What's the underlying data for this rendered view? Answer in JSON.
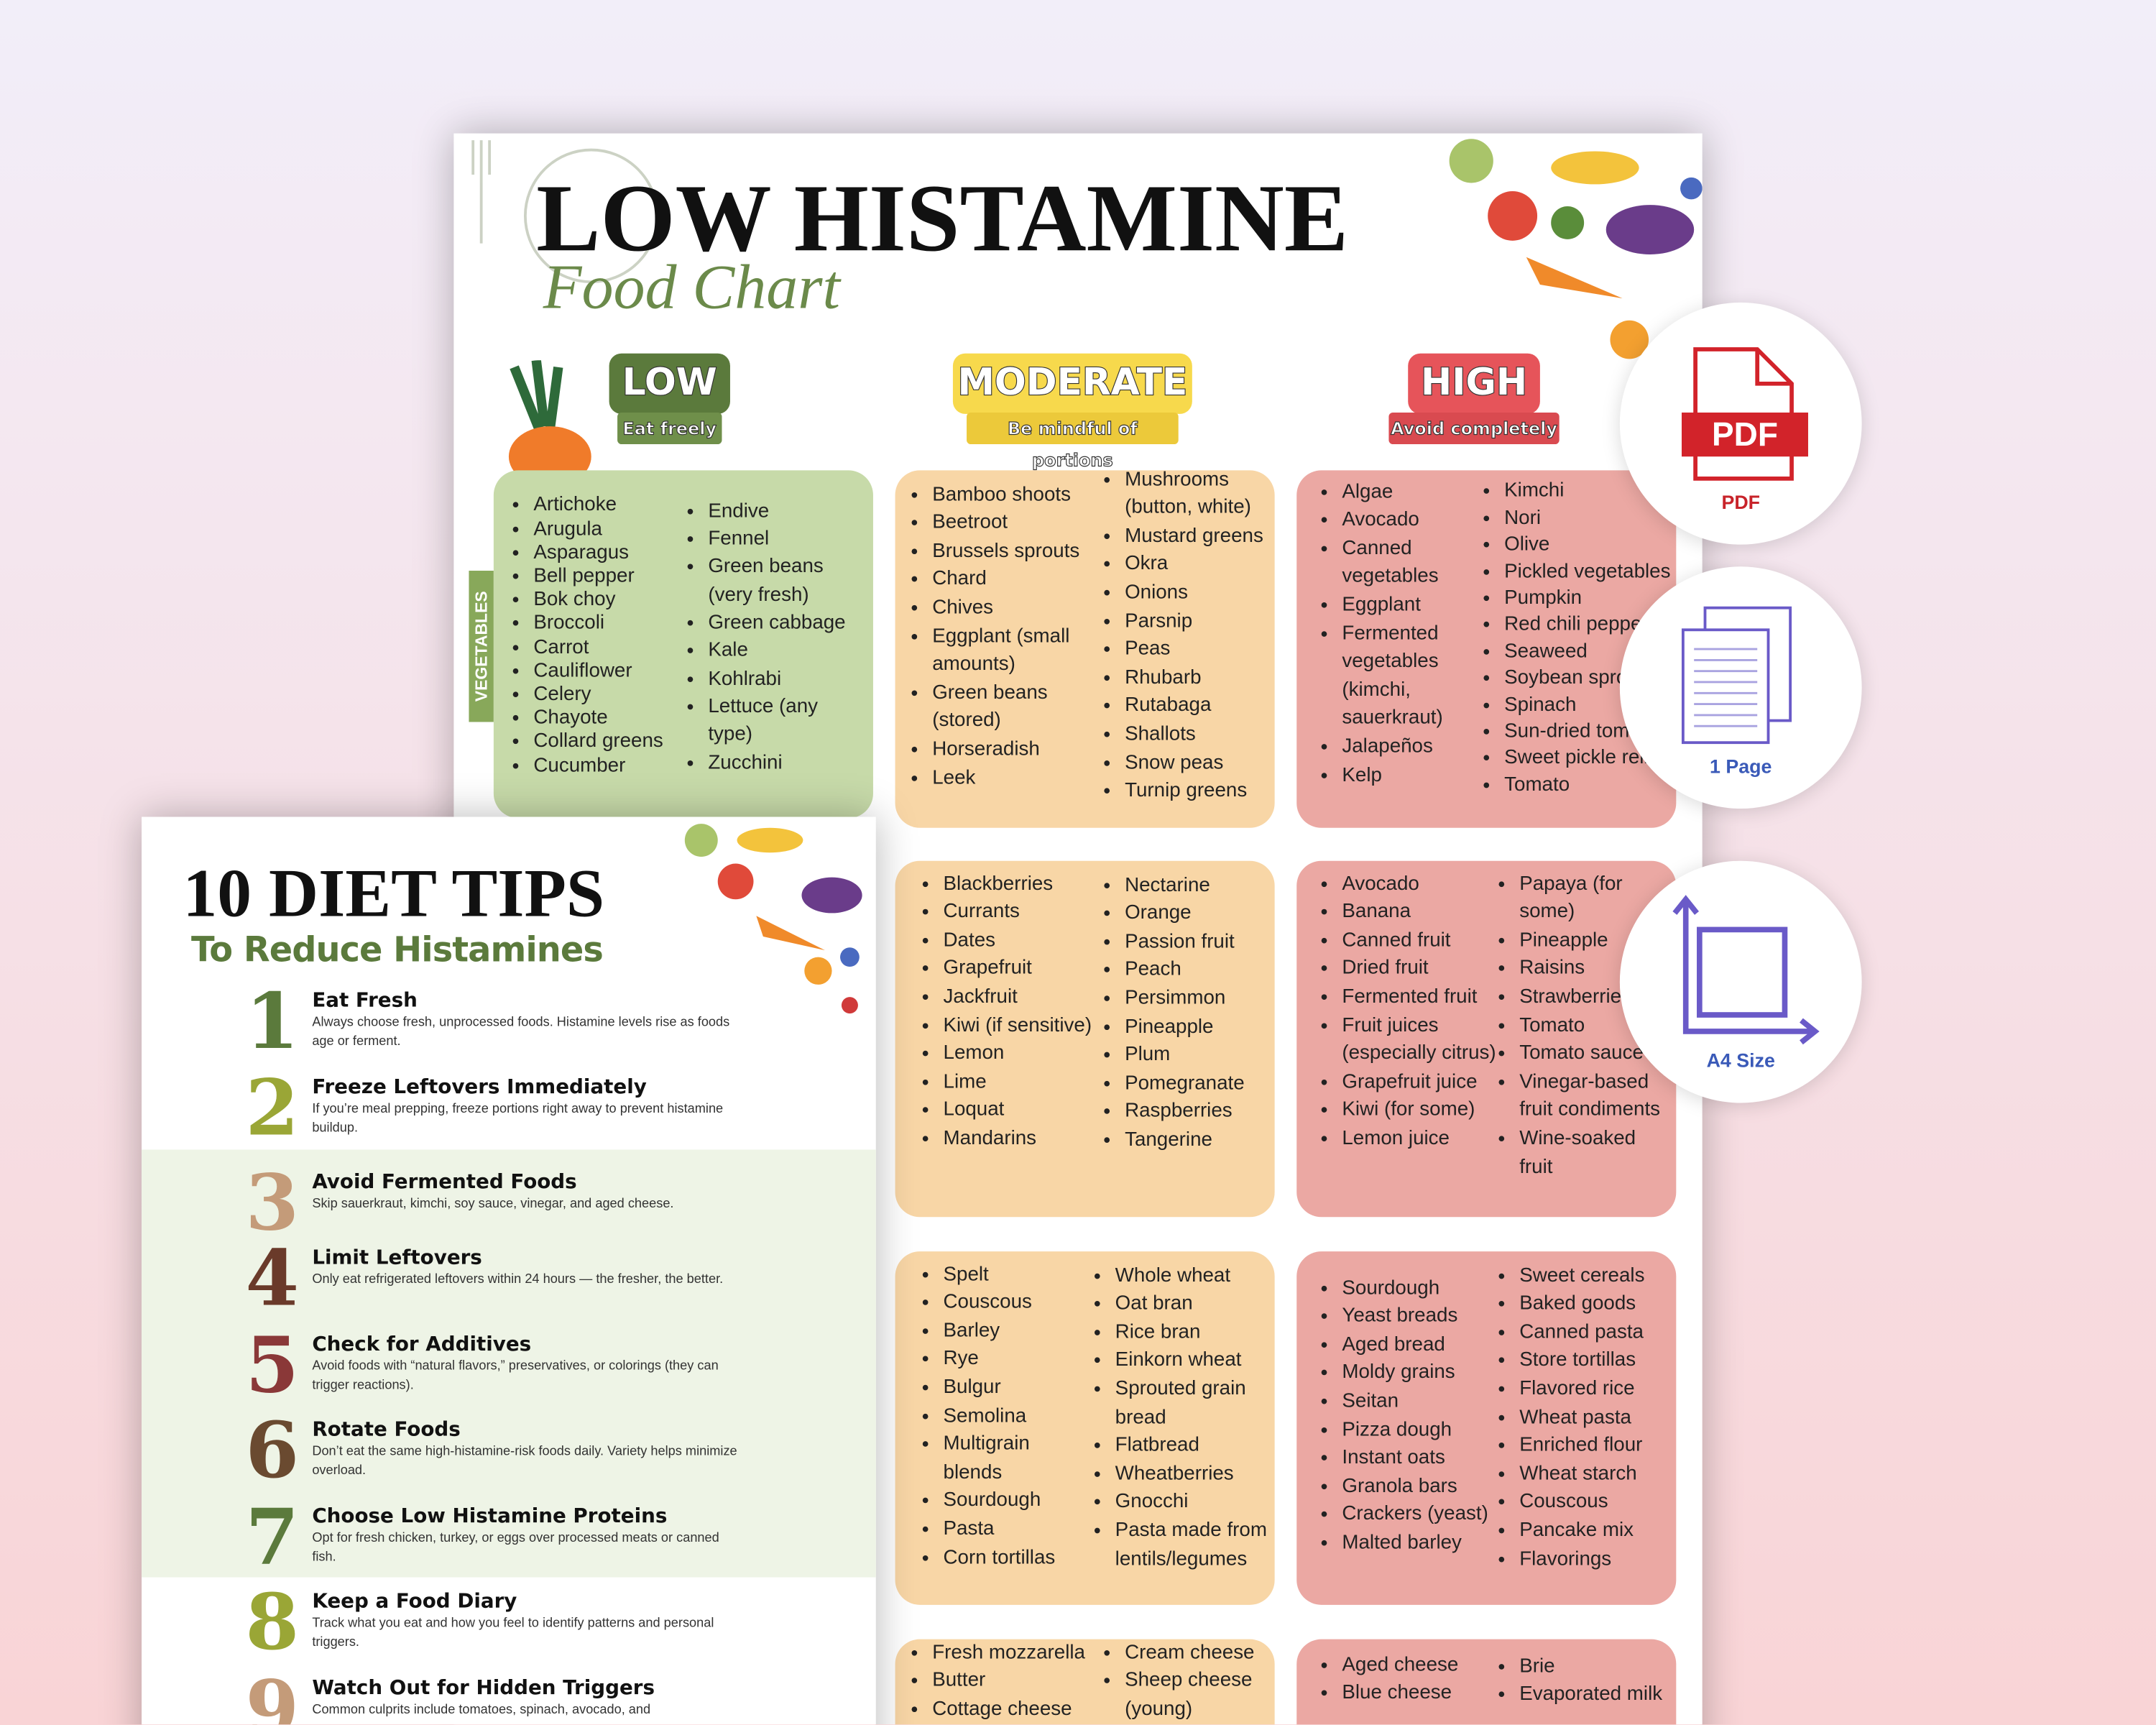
{
  "chart_page": {
    "title": "LOW HISTAMINE",
    "subtitle": "Food Chart",
    "levels": [
      {
        "label": "LOW",
        "note": "Eat freely",
        "color": "#5b7a3c",
        "note_color": "#6f8f4a"
      },
      {
        "label": "MODERATE",
        "note": "Be mindful of portions",
        "color": "#f7d94c",
        "note_color": "#ecc93a"
      },
      {
        "label": "HIGH",
        "note": "Avoid completely",
        "color": "#e6545a",
        "note_color": "#d94a50"
      }
    ],
    "category_label": "VEGETABLES",
    "boxes": [
      {
        "color": "#c7daa9",
        "columns": [
          [
            "Artichoke",
            "Arugula",
            "Asparagus",
            "Bell pepper",
            "Bok choy",
            "Broccoli",
            "Carrot",
            "Cauliflower",
            "Celery",
            "Chayote",
            "Collard greens",
            "Cucumber"
          ],
          [
            "Endive",
            "Fennel",
            "Green beans (very fresh)",
            "Green cabbage",
            "Kale",
            "Kohlrabi",
            "Lettuce (any type)",
            "Zucchini"
          ]
        ]
      },
      {
        "color": "#f8d6a6",
        "columns": [
          [
            "Bamboo shoots",
            "Beetroot",
            "Brussels sprouts",
            "Chard",
            "Chives",
            "Eggplant (small amounts)",
            "Green beans (stored)",
            "Horseradish",
            "Leek"
          ],
          [
            "Mushrooms (button, white)",
            "Mustard greens",
            "Okra",
            "Onions",
            "Parsnip",
            "Peas",
            "Rhubarb",
            "Rutabaga",
            "Shallots",
            "Snow peas",
            "Turnip greens"
          ]
        ]
      },
      {
        "color": "#eba8a3",
        "columns": [
          [
            "Algae",
            "Avocado",
            "Canned vegetables",
            "Eggplant",
            "Fermented vegetables (kimchi, sauerkraut)",
            "Jalapeños",
            "Kelp"
          ],
          [
            "Kimchi",
            "Nori",
            "Olive",
            "Pickled vegetables",
            "Pumpkin",
            "Red chili peppe",
            "Seaweed",
            "Soybean spro",
            "Spinach",
            "Sun-dried toma",
            "Sweet pickle relis",
            "Tomato"
          ]
        ]
      },
      {
        "color": "#f8d6a6",
        "columns": [
          [
            "Blackberries",
            "Currants",
            "Dates",
            "Grapefruit",
            "Jackfruit",
            "Kiwi (if sensitive)",
            "Lemon",
            "Lime",
            "Loquat",
            "Mandarins"
          ],
          [
            "Nectarine",
            "Orange",
            "Passion fruit",
            "Peach",
            "Persimmon",
            "Pineapple",
            "Plum",
            "Pomegranate",
            "Raspberries",
            "Tangerine"
          ]
        ]
      },
      {
        "color": "#eba8a3",
        "columns": [
          [
            "Avocado",
            "Banana",
            "Canned fruit",
            "Dried fruit",
            "Fermented fruit",
            "Fruit juices (especially citrus)",
            "Grapefruit juice",
            "Kiwi (for some)",
            "Lemon juice"
          ],
          [
            "Papaya (for some)",
            "Pineapple",
            "Raisins",
            "Strawberries",
            "Tomato",
            "Tomato sauce",
            "Vinegar-based fruit condiments",
            "Wine-soaked fruit"
          ]
        ]
      },
      {
        "color": "#f8d6a6",
        "columns": [
          [
            "Spelt",
            "Couscous",
            "Barley",
            "Rye",
            "Bulgur",
            "Semolina",
            "Multigrain blends",
            "Sourdough",
            "Pasta",
            "Corn tortillas"
          ],
          [
            "Whole wheat",
            "Oat bran",
            "Rice bran",
            "Einkorn wheat",
            "Sprouted grain bread",
            "Flatbread",
            "Wheatberries",
            "Gnocchi",
            "Pasta made from lentils/legumes"
          ]
        ]
      },
      {
        "color": "#eba8a3",
        "columns": [
          [
            "Sourdough",
            "Yeast breads",
            "Aged bread",
            "Moldy grains",
            "Seitan",
            "Pizza dough",
            "Instant oats",
            "Granola bars",
            "Crackers (yeast)",
            "Malted barley"
          ],
          [
            "Sweet cereals",
            "Baked goods",
            "Canned pasta",
            "Store tortillas",
            "Flavored rice",
            "Wheat pasta",
            "Enriched flour",
            "Wheat starch",
            "Couscous",
            "Pancake mix",
            "Flavorings"
          ]
        ]
      },
      {
        "color": "#f8d6a6",
        "columns": [
          [
            "Fresh mozzarella",
            "Butter",
            "Cottage cheese"
          ],
          [
            "Cream cheese",
            "Sheep cheese (young)"
          ]
        ]
      },
      {
        "color": "#eba8a3",
        "columns": [
          [
            "Aged cheese",
            "Blue cheese"
          ],
          [
            "Brie",
            "Evaporated milk"
          ]
        ]
      }
    ]
  },
  "tips_page": {
    "title": "10 DIET TIPS",
    "subtitle": "To Reduce Histamines",
    "tips": [
      {
        "number": "1",
        "color": "#5b7a3c",
        "title": "Eat Fresh",
        "text": "Always choose fresh, unprocessed foods. Histamine levels rise as foods age or ferment."
      },
      {
        "number": "2",
        "color": "#9aa636",
        "title": "Freeze Leftovers Immediately",
        "text": "If you’re meal prepping, freeze portions right away to prevent histamine buildup."
      },
      {
        "number": "3",
        "color": "#c49b79",
        "title": "Avoid Fermented Foods",
        "text": "Skip sauerkraut, kimchi, soy sauce, vinegar, and aged cheese."
      },
      {
        "number": "4",
        "color": "#6a3a2a",
        "title": "Limit Leftovers",
        "text": "Only eat refrigerated leftovers within 24 hours — the fresher, the better."
      },
      {
        "number": "5",
        "color": "#8a3838",
        "title": "Check for Additives",
        "text": "Avoid foods with “natural flavors,” preservatives, or colorings (they can trigger reactions)."
      },
      {
        "number": "6",
        "color": "#6a4a30",
        "title": "Rotate Foods",
        "text": "Don’t eat the same high-histamine-risk foods daily. Variety helps minimize overload."
      },
      {
        "number": "7",
        "color": "#5b7a3c",
        "title": "Choose Low Histamine Proteins",
        "text": "Opt for fresh chicken, turkey, or eggs over processed meats or canned fish."
      },
      {
        "number": "8",
        "color": "#9aa636",
        "title": "Keep a Food Diary",
        "text": "Track what you eat and how you feel to identify patterns and personal triggers."
      },
      {
        "number": "9",
        "color": "#c49b79",
        "title": "Watch Out for Hidden Triggers",
        "text": "Common culprits include tomatoes, spinach, avocado, and"
      }
    ]
  },
  "badges": [
    {
      "icon_text": "PDF",
      "caption": "PDF"
    },
    {
      "caption": "1 Page"
    },
    {
      "caption": "A4 Size"
    }
  ]
}
